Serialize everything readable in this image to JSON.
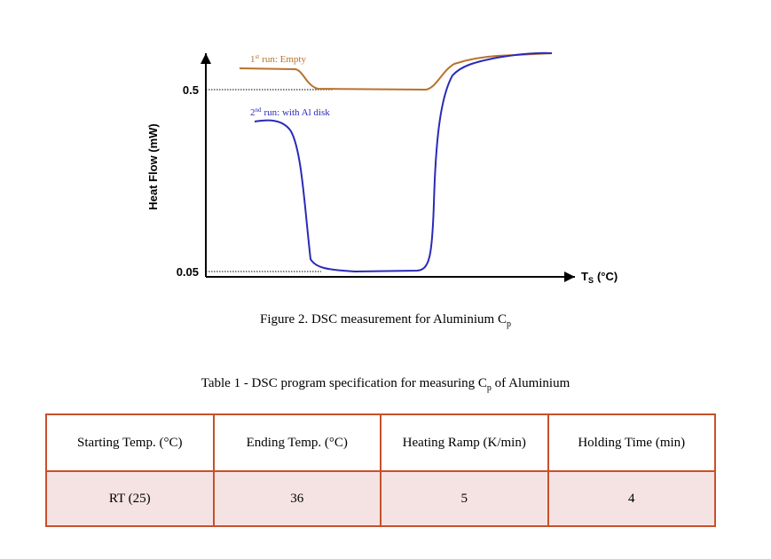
{
  "figure": {
    "y_axis_label": "Heat Flow (mW)",
    "y_ticks": [
      0.5,
      0.05
    ],
    "x_axis_label": {
      "symbol": "T",
      "subscript": "S",
      "unit": "(°C)"
    },
    "series": [
      {
        "ordinal": "1",
        "suffix": "st",
        "text": "run: Empty"
      },
      {
        "ordinal": "2",
        "suffix": "nd",
        "text": "run: with Al disk"
      }
    ],
    "caption": {
      "text": "Figure 2. DSC measurement for Aluminium C",
      "subscript": "p"
    }
  },
  "table": {
    "title": {
      "text": "Table 1 - DSC program specification for measuring C",
      "subscript": "p",
      "rest": "of Aluminium"
    },
    "header": [
      "Starting Temp. (°C)",
      "Ending Temp. (°C)",
      "Heating Ramp (K/min)",
      "Holding Time (min)"
    ],
    "rows": [
      [
        "RT (25)",
        36,
        5,
        4
      ]
    ]
  }
}
